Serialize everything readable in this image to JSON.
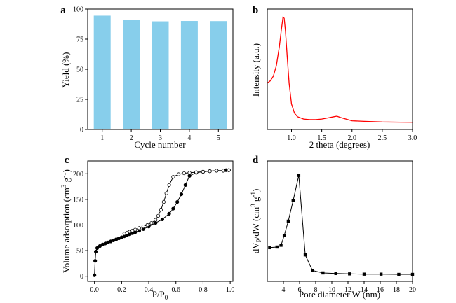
{
  "chart_data": [
    {
      "panel": "a",
      "type": "bar",
      "categories": [
        "1",
        "2",
        "3",
        "4",
        "5"
      ],
      "values": [
        94.5,
        91.2,
        89.8,
        90.1,
        90.0
      ],
      "xlabel": "Cycle number",
      "ylabel": "Yield (%)",
      "ylim": [
        0,
        100
      ],
      "yticks": [
        "0",
        "25",
        "50",
        "75",
        "100"
      ],
      "grid": false,
      "colors": {
        "bar": "#87ceeb"
      }
    },
    {
      "panel": "b",
      "type": "line",
      "xlabel": "2 theta (degrees)",
      "ylabel": "Intensity (a.u.)",
      "xlim": [
        0.6,
        3.0
      ],
      "xticks": [
        "1.0",
        "1.5",
        "2.0",
        "2.5",
        "3.0"
      ],
      "show_y_ticks": false,
      "grid": false,
      "series": [
        {
          "color": "#ff0000",
          "x": [
            0.6,
            0.65,
            0.7,
            0.75,
            0.8,
            0.83,
            0.86,
            0.88,
            0.9,
            0.93,
            0.96,
            1.0,
            1.05,
            1.1,
            1.2,
            1.3,
            1.4,
            1.5,
            1.6,
            1.7,
            1.75,
            1.8,
            1.9,
            2.0,
            2.2,
            2.5,
            2.8,
            3.0
          ],
          "y": [
            0.4,
            0.42,
            0.46,
            0.55,
            0.72,
            0.85,
            0.97,
            0.96,
            0.85,
            0.62,
            0.4,
            0.22,
            0.14,
            0.11,
            0.09,
            0.085,
            0.085,
            0.09,
            0.1,
            0.11,
            0.115,
            0.105,
            0.09,
            0.075,
            0.07,
            0.065,
            0.063,
            0.062
          ]
        }
      ]
    },
    {
      "panel": "c",
      "type": "line",
      "xlabel": "P/P",
      "xlabel_sub": "0",
      "ylabel": "Volume adsorption (cm",
      "ylabel_sup1": "3",
      "ylabel_mid": " g",
      "ylabel_sup2": "-1",
      "ylabel_end": ")",
      "xlim": [
        -0.05,
        1.02
      ],
      "ylim": [
        -10,
        225
      ],
      "xticks": [
        "0.0",
        "0.2",
        "0.4",
        "0.6",
        "0.8",
        "1.0"
      ],
      "yticks": [
        "0",
        "50",
        "100",
        "150",
        "200"
      ],
      "grid": false,
      "series": [
        {
          "marker": "filled-circle",
          "x": [
            0.0,
            0.005,
            0.01,
            0.02,
            0.04,
            0.06,
            0.08,
            0.1,
            0.12,
            0.14,
            0.16,
            0.18,
            0.2,
            0.22,
            0.24,
            0.26,
            0.28,
            0.3,
            0.33,
            0.36,
            0.4,
            0.45,
            0.5,
            0.55,
            0.58,
            0.61,
            0.64,
            0.67,
            0.7,
            0.75,
            0.8,
            0.85,
            0.9,
            0.95,
            0.97,
            0.99
          ],
          "y": [
            2,
            30,
            48,
            55,
            59,
            62,
            64,
            66,
            68,
            70,
            72,
            74,
            76,
            78,
            80,
            82,
            84,
            86,
            89,
            92,
            97,
            104,
            111,
            122,
            132,
            145,
            160,
            178,
            196,
            202,
            204,
            205,
            206,
            206,
            207,
            207
          ]
        },
        {
          "marker": "open-circle",
          "x": [
            0.22,
            0.24,
            0.26,
            0.28,
            0.3,
            0.33,
            0.36,
            0.39,
            0.42,
            0.45,
            0.47,
            0.49,
            0.51,
            0.53,
            0.55,
            0.58,
            0.62,
            0.66,
            0.7,
            0.75,
            0.8,
            0.85,
            0.9,
            0.95,
            0.99
          ],
          "y": [
            83,
            85,
            87,
            89,
            91,
            94,
            97,
            100,
            104,
            110,
            118,
            130,
            145,
            162,
            178,
            194,
            199,
            201,
            202,
            203,
            204,
            205,
            206,
            206,
            207
          ]
        }
      ]
    },
    {
      "panel": "d",
      "type": "line",
      "xlabel": "Pore diameter W (nm)",
      "ylabel": "dV",
      "ylabel_sub": "P",
      "ylabel_mid": "/dW (cm",
      "ylabel_sup1": "3",
      "ylabel_mid2": " g",
      "ylabel_sup2": "-1",
      "ylabel_end": ")",
      "xlim": [
        2,
        20
      ],
      "xticks": [
        "4",
        "6",
        "8",
        "10",
        "12",
        "14",
        "16",
        "18",
        "20"
      ],
      "show_y_ticks": false,
      "grid": false,
      "series": [
        {
          "marker": "filled-square",
          "x": [
            2.3,
            3.2,
            3.7,
            4.1,
            4.6,
            5.2,
            5.9,
            6.7,
            7.6,
            8.9,
            10.5,
            12.2,
            14.0,
            16.1,
            18.3,
            20.0
          ],
          "y": [
            0.23,
            0.235,
            0.25,
            0.33,
            0.45,
            0.62,
            0.83,
            0.17,
            0.04,
            0.02,
            0.015,
            0.012,
            0.01,
            0.01,
            0.008,
            0.008
          ]
        }
      ]
    }
  ]
}
